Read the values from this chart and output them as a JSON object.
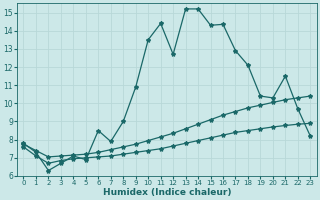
{
  "xlabel": "Humidex (Indice chaleur)",
  "xlim": [
    -0.5,
    23.5
  ],
  "ylim": [
    6,
    15.5
  ],
  "xticks": [
    0,
    1,
    2,
    3,
    4,
    5,
    6,
    7,
    8,
    9,
    10,
    11,
    12,
    13,
    14,
    15,
    16,
    17,
    18,
    19,
    20,
    21,
    22,
    23
  ],
  "yticks": [
    6,
    7,
    8,
    9,
    10,
    11,
    12,
    13,
    14,
    15
  ],
  "bg_color": "#cce8e8",
  "grid_color": "#b8d8d8",
  "line_color": "#1a6868",
  "line1_x": [
    0,
    1,
    2,
    3,
    4,
    5,
    6,
    7,
    8,
    9,
    10,
    11,
    12,
    13,
    14,
    15,
    16,
    17,
    18,
    19,
    20,
    21,
    22,
    23
  ],
  "line1_y": [
    7.8,
    7.3,
    6.3,
    6.7,
    7.1,
    6.9,
    8.5,
    7.9,
    9.0,
    10.9,
    13.5,
    14.4,
    12.7,
    15.2,
    15.2,
    14.3,
    14.35,
    12.9,
    12.1,
    10.4,
    10.3,
    11.5,
    9.7,
    8.2
  ],
  "line2_x": [
    0,
    1,
    2,
    3,
    4,
    5,
    6,
    7,
    8,
    9,
    10,
    11,
    12,
    13,
    14,
    15,
    16,
    17,
    18,
    19,
    20,
    21,
    22,
    23
  ],
  "line2_y": [
    7.75,
    7.4,
    7.05,
    7.1,
    7.15,
    7.2,
    7.3,
    7.45,
    7.6,
    7.75,
    7.95,
    8.15,
    8.35,
    8.6,
    8.85,
    9.1,
    9.35,
    9.55,
    9.75,
    9.9,
    10.05,
    10.2,
    10.3,
    10.4
  ],
  "line3_x": [
    0,
    1,
    2,
    3,
    4,
    5,
    6,
    7,
    8,
    9,
    10,
    11,
    12,
    13,
    14,
    15,
    16,
    17,
    18,
    19,
    20,
    21,
    22,
    23
  ],
  "line3_y": [
    7.6,
    7.1,
    6.7,
    6.85,
    6.95,
    7.0,
    7.05,
    7.1,
    7.2,
    7.3,
    7.4,
    7.5,
    7.65,
    7.8,
    7.95,
    8.1,
    8.25,
    8.4,
    8.5,
    8.6,
    8.7,
    8.78,
    8.85,
    8.9
  ],
  "marker": "*",
  "markersize": 3,
  "linewidth": 0.9
}
